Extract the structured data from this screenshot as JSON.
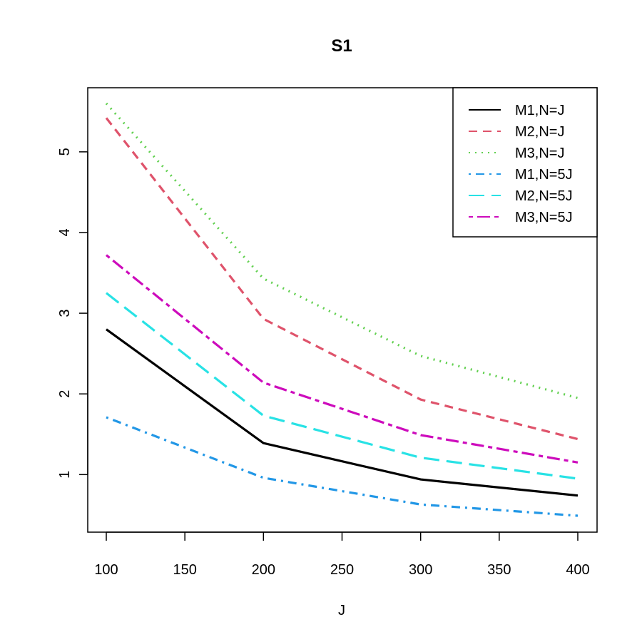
{
  "chart_data": {
    "type": "line",
    "title": "S1",
    "xlabel": "J",
    "ylabel": "",
    "x": [
      100,
      200,
      300,
      400
    ],
    "xlim": [
      100,
      400
    ],
    "ylim": [
      0.49,
      5.6
    ],
    "x_ticks": [
      100,
      150,
      200,
      250,
      300,
      350,
      400
    ],
    "y_ticks": [
      1,
      2,
      3,
      4,
      5
    ],
    "grid": false,
    "legend_position": "top-right",
    "series": [
      {
        "name": "M1,N=J",
        "values": [
          2.8,
          1.39,
          0.94,
          0.74
        ],
        "color": "#000000",
        "linestyle": "solid"
      },
      {
        "name": "M2,N=J",
        "values": [
          5.42,
          2.93,
          1.93,
          1.44
        ],
        "color": "#DF536B",
        "linestyle": "dashed"
      },
      {
        "name": "M3,N=J",
        "values": [
          5.6,
          3.43,
          2.47,
          1.95
        ],
        "color": "#61D04F",
        "linestyle": "dotted"
      },
      {
        "name": "M1,N=5J",
        "values": [
          1.71,
          0.96,
          0.63,
          0.49
        ],
        "color": "#2297E6",
        "linestyle": "dotdash"
      },
      {
        "name": "M2,N=5J",
        "values": [
          3.25,
          1.73,
          1.21,
          0.95
        ],
        "color": "#28E2E5",
        "linestyle": "longdash"
      },
      {
        "name": "M3,N=5J",
        "values": [
          3.72,
          2.14,
          1.49,
          1.15
        ],
        "color": "#CD0BBC",
        "linestyle": "twodash"
      }
    ]
  }
}
